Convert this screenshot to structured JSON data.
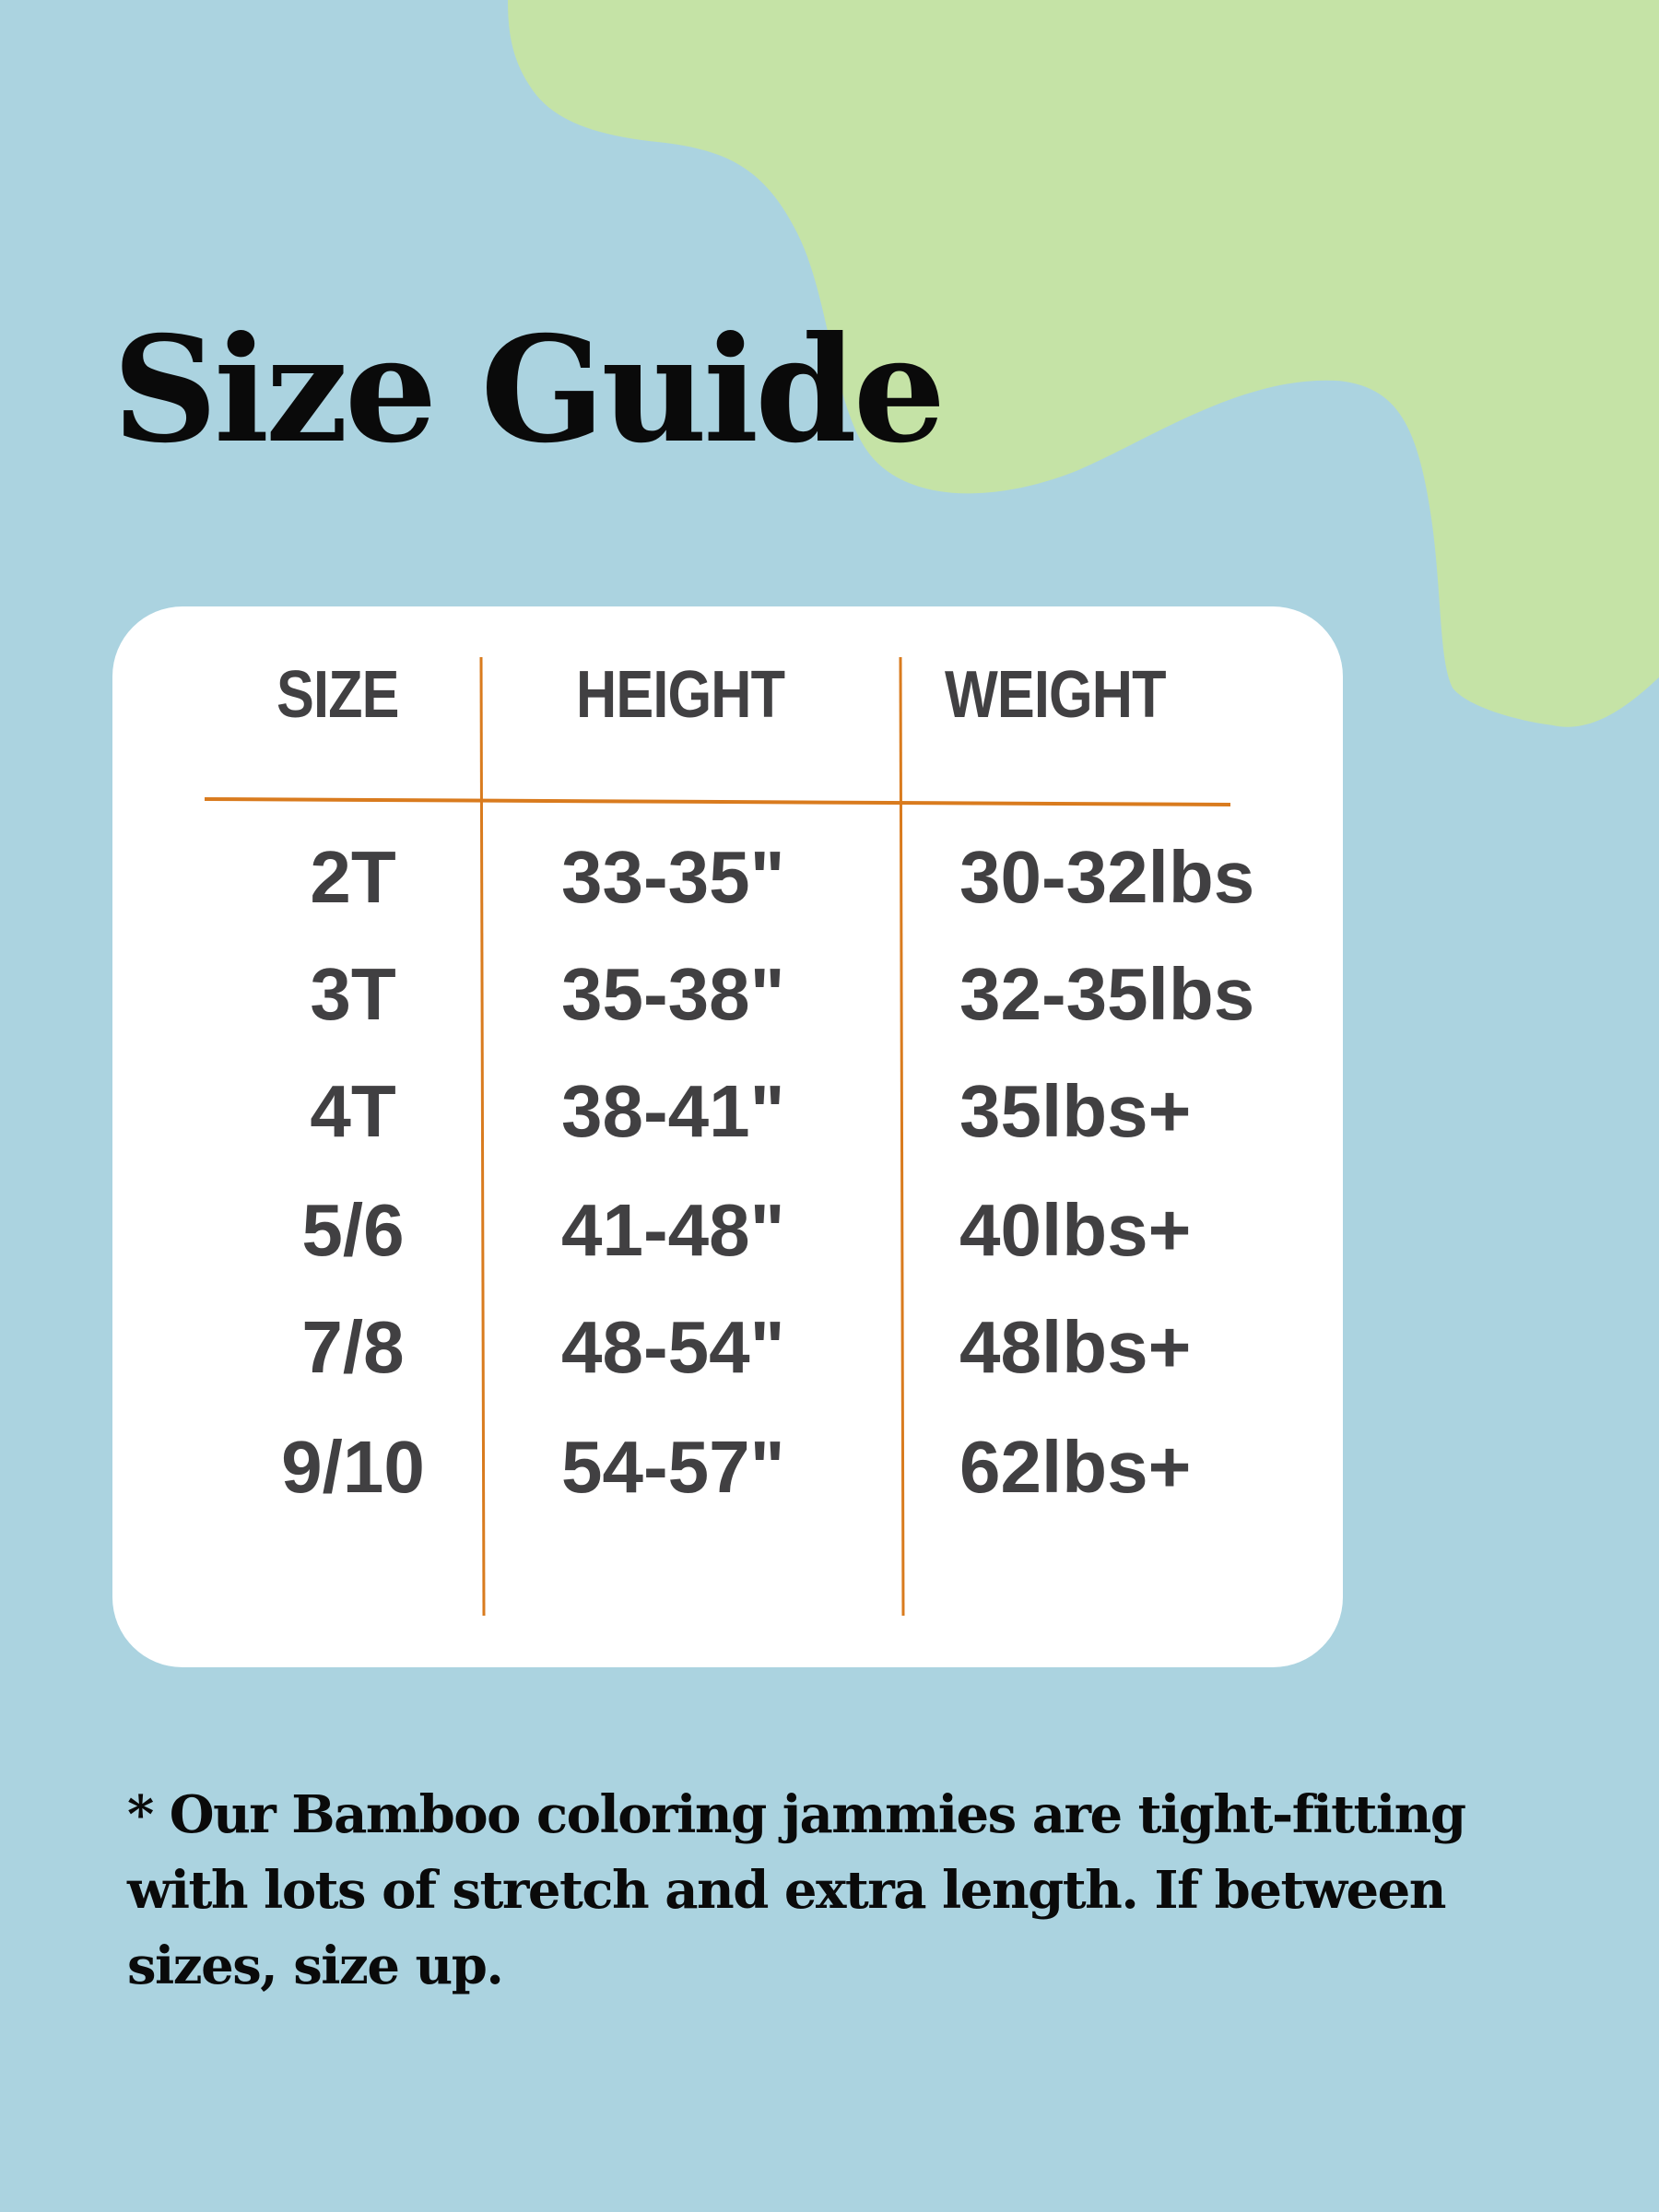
{
  "title": "Size Guide",
  "colors": {
    "background": "#abd3e0",
    "blob": "#c5e3a6",
    "card": "#ffffff",
    "lines": "#d97b1e",
    "text": "#414042"
  },
  "table": {
    "headers": [
      "SIZE",
      "HEIGHT",
      "WEIGHT"
    ],
    "rows": [
      [
        "2T",
        "33-35\"",
        "30-32lbs"
      ],
      [
        "3T",
        "35-38\"",
        "32-35lbs"
      ],
      [
        "4T",
        "38-41\"",
        "35lbs+"
      ],
      [
        "5/6",
        "41-48\"",
        "40lbs+"
      ],
      [
        "7/8",
        "48-54\"",
        "48lbs+"
      ],
      [
        "9/10",
        "54-57\"",
        "62lbs+"
      ]
    ]
  },
  "note": "* Our Bamboo coloring jammies are tight-fitting with lots of stretch and extra length. If between sizes, size up."
}
